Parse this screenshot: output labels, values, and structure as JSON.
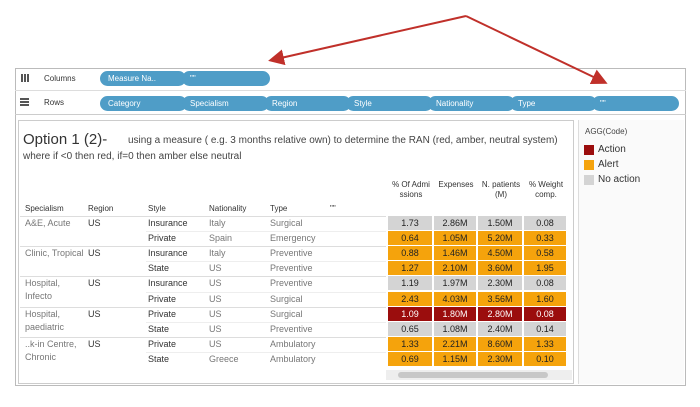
{
  "shelves": {
    "columns": {
      "label": "Columns",
      "pills": [
        "Measure Na..",
        "\"\""
      ]
    },
    "rows": {
      "label": "Rows",
      "pills": [
        "Category",
        "Specialism",
        "Region",
        "Style",
        "Nationality",
        "Type",
        "\"\""
      ]
    }
  },
  "view": {
    "title": "Option 1 (2)-",
    "subtitle": "using a measure ( e.g. 3 months relative own) to determine the RAN (red, amber, neutral system)",
    "note": "where if <0 then red, if=0 then amber else neutral",
    "headers": [
      "Specialism",
      "Region",
      "Style",
      "Nationality",
      "Type",
      "\"\"",
      "% Of Admi ssions",
      "Expenses",
      "N. patients (M)",
      "% Weight comp."
    ],
    "groups": [
      {
        "specialism": "A&E, Acute",
        "region": "US",
        "rows": [
          {
            "style": "Insurance",
            "nationality": "Italy",
            "type": "Surgical",
            "color": "#d4d4d4",
            "values": [
              "1.73",
              "2.86M",
              "1.50M",
              "0.08"
            ]
          },
          {
            "style": "Private",
            "nationality": "Spain",
            "type": "Emergency",
            "color": "#f5a30c",
            "values": [
              "0.64",
              "1.05M",
              "5.20M",
              "0.33"
            ]
          }
        ]
      },
      {
        "specialism": "Clinic, Tropical",
        "region": "US",
        "rows": [
          {
            "style": "Insurance",
            "nationality": "Italy",
            "type": "Preventive",
            "color": "#f5a30c",
            "values": [
              "0.88",
              "1.46M",
              "4.50M",
              "0.58"
            ]
          },
          {
            "style": "State",
            "nationality": "US",
            "type": "Preventive",
            "color": "#f5a30c",
            "values": [
              "1.27",
              "2.10M",
              "3.60M",
              "1.95"
            ]
          }
        ]
      },
      {
        "specialism": "Hospital, Infecto",
        "region": "US",
        "rows": [
          {
            "style": "Insurance",
            "nationality": "US",
            "type": "Preventive",
            "color": "#d4d4d4",
            "values": [
              "1.19",
              "1.97M",
              "2.30M",
              "0.08"
            ]
          },
          {
            "style": "Private",
            "nationality": "US",
            "type": "Surgical",
            "color": "#f5a30c",
            "values": [
              "2.43",
              "4.03M",
              "3.56M",
              "1.60"
            ]
          }
        ]
      },
      {
        "specialism": "Hospital, paediatric",
        "region": "US",
        "rows": [
          {
            "style": "Private",
            "nationality": "US",
            "type": "Surgical",
            "color": "#9b0d0d",
            "values": [
              "1.09",
              "1.80M",
              "2.80M",
              "0.08"
            ]
          },
          {
            "style": "State",
            "nationality": "US",
            "type": "Preventive",
            "color": "#d4d4d4",
            "values": [
              "0.65",
              "1.08M",
              "2.40M",
              "0.14"
            ]
          }
        ]
      },
      {
        "specialism": "..k-in Centre, Chronic",
        "region": "US",
        "rows": [
          {
            "style": "Private",
            "nationality": "US",
            "type": "Ambulatory",
            "color": "#f5a30c",
            "values": [
              "1.33",
              "2.21M",
              "8.60M",
              "1.33"
            ]
          },
          {
            "style": "State",
            "nationality": "Greece",
            "type": "Ambulatory",
            "color": "#f5a30c",
            "values": [
              "0.69",
              "1.15M",
              "2.30M",
              "0.10"
            ]
          }
        ]
      }
    ]
  },
  "legend": {
    "title": "AGG(Code)",
    "items": [
      {
        "label": "Action",
        "color": "#9b0d0d"
      },
      {
        "label": "Alert",
        "color": "#f5a30c"
      },
      {
        "label": "No action",
        "color": "#d4d4d4"
      }
    ]
  }
}
